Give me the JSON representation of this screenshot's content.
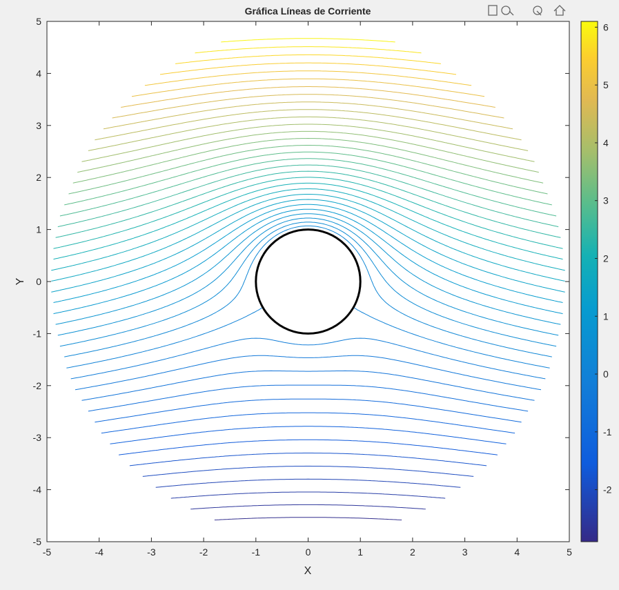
{
  "chart_data": {
    "type": "contour",
    "title": "Gráfica Líneas de Corriente",
    "x_label": "X",
    "y_label": "Y",
    "xlim": [
      -5,
      5
    ],
    "ylim": [
      -5,
      5
    ],
    "xticks": [
      -5,
      -4,
      -3,
      -2,
      -1,
      0,
      1,
      2,
      3,
      4,
      5
    ],
    "yticks": [
      -5,
      -4,
      -3,
      -2,
      -1,
      0,
      1,
      2,
      3,
      4,
      5
    ],
    "levels": [
      -2.8,
      -2.6,
      -2.4,
      -2.2,
      -2.0,
      -1.8,
      -1.6,
      -1.4,
      -1.2,
      -1.0,
      -0.8,
      -0.6,
      -0.4,
      -0.2,
      0.0,
      0.2,
      0.4,
      0.6,
      0.8,
      1.0,
      1.2,
      1.4,
      1.6,
      1.8,
      2.0,
      2.2,
      2.4,
      2.6,
      2.8,
      3.0,
      3.2,
      3.4,
      3.6,
      3.8,
      4.0,
      4.2,
      4.4,
      4.6,
      4.8,
      5.0,
      5.2,
      5.4,
      5.6,
      5.8,
      6.0
    ],
    "colorbar": {
      "clim": [
        -2.9,
        6.1
      ],
      "ticks": [
        -2,
        -1,
        0,
        1,
        2,
        3,
        4,
        5,
        6
      ]
    },
    "cylinder": {
      "radius": 1,
      "color": "#000000"
    }
  }
}
